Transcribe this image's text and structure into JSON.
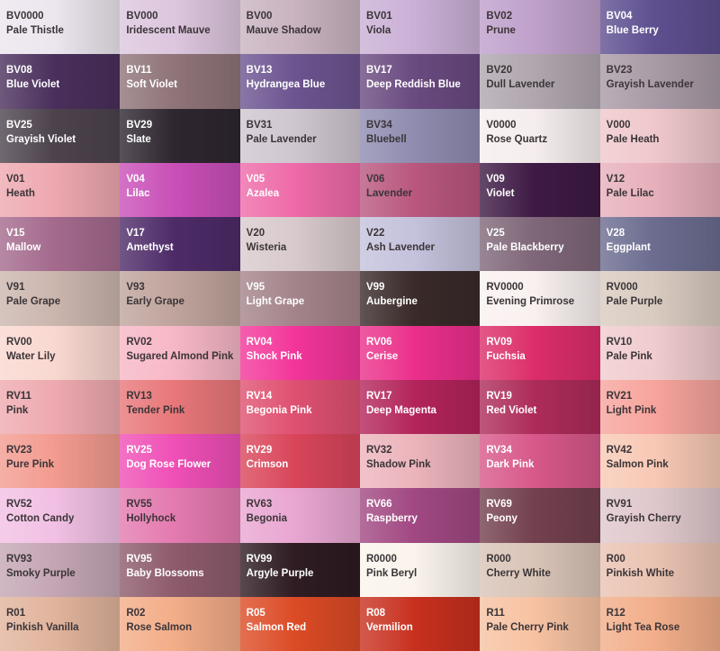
{
  "swatches": [
    {
      "code": "BV0000",
      "name": "Pale Thistle",
      "color": "#ece6ee",
      "text": "dark"
    },
    {
      "code": "BV000",
      "name": "Iridescent Mauve",
      "color": "#ddc6de",
      "text": "dark"
    },
    {
      "code": "BV00",
      "name": "Mauve Shadow",
      "color": "#c9b3c0",
      "text": "dark"
    },
    {
      "code": "BV01",
      "name": "Viola",
      "color": "#cab0d6",
      "text": "dark"
    },
    {
      "code": "BV02",
      "name": "Prune",
      "color": "#bfa0cb",
      "text": "dark"
    },
    {
      "code": "BV04",
      "name": "Blue Berry",
      "color": "#5e4f90",
      "text": "light"
    },
    {
      "code": "BV08",
      "name": "Blue Violet",
      "color": "#4a2f5c",
      "text": "light"
    },
    {
      "code": "BV11",
      "name": "Soft Violet",
      "color": "#8f7479",
      "text": "light"
    },
    {
      "code": "BV13",
      "name": "Hydrangea Blue",
      "color": "#6c5490",
      "text": "light"
    },
    {
      "code": "BV17",
      "name": "Deep Reddish Blue",
      "color": "#6a4a80",
      "text": "light"
    },
    {
      "code": "BV20",
      "name": "Dull Lavender",
      "color": "#b0a6ae",
      "text": "dark"
    },
    {
      "code": "BV23",
      "name": "Grayish Lavender",
      "color": "#a89aa6",
      "text": "dark"
    },
    {
      "code": "BV25",
      "name": "Grayish Violet",
      "color": "#4d434d",
      "text": "light"
    },
    {
      "code": "BV29",
      "name": "Slate",
      "color": "#2e2630",
      "text": "light"
    },
    {
      "code": "BV31",
      "name": "Pale Lavender",
      "color": "#cfc6d0",
      "text": "dark"
    },
    {
      "code": "BV34",
      "name": "Bluebell",
      "color": "#8f8cb0",
      "text": "dark"
    },
    {
      "code": "V0000",
      "name": "Rose Quartz",
      "color": "#f6eeee",
      "text": "dark"
    },
    {
      "code": "V000",
      "name": "Pale Heath",
      "color": "#efc8cc",
      "text": "dark"
    },
    {
      "code": "V01",
      "name": "Heath",
      "color": "#eea8b0",
      "text": "dark"
    },
    {
      "code": "V04",
      "name": "Lilac",
      "color": "#c94fb8",
      "text": "light"
    },
    {
      "code": "V05",
      "name": "Azalea",
      "color": "#ee6aa8",
      "text": "light"
    },
    {
      "code": "V06",
      "name": "Lavender",
      "color": "#b9577f",
      "text": "dark"
    },
    {
      "code": "V09",
      "name": "Violet",
      "color": "#3e1a44",
      "text": "light"
    },
    {
      "code": "V12",
      "name": "Pale Lilac",
      "color": "#e7b0bb",
      "text": "dark"
    },
    {
      "code": "V15",
      "name": "Mallow",
      "color": "#a46a8d",
      "text": "light"
    },
    {
      "code": "V17",
      "name": "Amethyst",
      "color": "#4e2b68",
      "text": "light"
    },
    {
      "code": "V20",
      "name": "Wisteria",
      "color": "#d8cacd",
      "text": "dark"
    },
    {
      "code": "V22",
      "name": "Ash Lavender",
      "color": "#c4c2dc",
      "text": "dark"
    },
    {
      "code": "V25",
      "name": "Pale Blackberry",
      "color": "#7f6779",
      "text": "light"
    },
    {
      "code": "V28",
      "name": "Eggplant",
      "color": "#6c6c90",
      "text": "light"
    },
    {
      "code": "V91",
      "name": "Pale Grape",
      "color": "#cbb6ae",
      "text": "dark"
    },
    {
      "code": "V93",
      "name": "Early Grape",
      "color": "#bfa49c",
      "text": "dark"
    },
    {
      "code": "V95",
      "name": "Light Grape",
      "color": "#a4848b",
      "text": "light"
    },
    {
      "code": "V99",
      "name": "Aubergine",
      "color": "#3a2a2a",
      "text": "light"
    },
    {
      "code": "RV0000",
      "name": "Evening Primrose",
      "color": "#f9f1f0",
      "text": "dark"
    },
    {
      "code": "RV000",
      "name": "Pale Purple",
      "color": "#d9cbc0",
      "text": "dark"
    },
    {
      "code": "RV00",
      "name": "Water Lily",
      "color": "#f9d8d0",
      "text": "dark"
    },
    {
      "code": "RV02",
      "name": "Sugared Almond Pink",
      "color": "#f7b7c6",
      "text": "dark"
    },
    {
      "code": "RV04",
      "name": "Shock Pink",
      "color": "#f3359a",
      "text": "light"
    },
    {
      "code": "RV06",
      "name": "Cerise",
      "color": "#eb2f8b",
      "text": "light"
    },
    {
      "code": "RV09",
      "name": "Fuchsia",
      "color": "#dc2d6a",
      "text": "light"
    },
    {
      "code": "RV10",
      "name": "Pale Pink",
      "color": "#f0ccce",
      "text": "dark"
    },
    {
      "code": "RV11",
      "name": "Pink",
      "color": "#eeaab0",
      "text": "dark"
    },
    {
      "code": "RV13",
      "name": "Tender Pink",
      "color": "#e8777a",
      "text": "dark"
    },
    {
      "code": "RV14",
      "name": "Begonia Pink",
      "color": "#df5071",
      "text": "light"
    },
    {
      "code": "RV17",
      "name": "Deep Magenta",
      "color": "#b3245c",
      "text": "light"
    },
    {
      "code": "RV19",
      "name": "Red Violet",
      "color": "#ad2b5a",
      "text": "light"
    },
    {
      "code": "RV21",
      "name": "Light Pink",
      "color": "#f7a49d",
      "text": "dark"
    },
    {
      "code": "RV23",
      "name": "Pure Pink",
      "color": "#f39b90",
      "text": "dark"
    },
    {
      "code": "RV25",
      "name": "Dog Rose Flower",
      "color": "#ef4fb6",
      "text": "light"
    },
    {
      "code": "RV29",
      "name": "Crimson",
      "color": "#d9455a",
      "text": "light"
    },
    {
      "code": "RV32",
      "name": "Shadow Pink",
      "color": "#ecb4bc",
      "text": "dark"
    },
    {
      "code": "RV34",
      "name": "Dark Pink",
      "color": "#d7588a",
      "text": "light"
    },
    {
      "code": "RV42",
      "name": "Salmon Pink",
      "color": "#f8c9b5",
      "text": "dark"
    },
    {
      "code": "RV52",
      "name": "Cotton Candy",
      "color": "#f2c0e4",
      "text": "dark"
    },
    {
      "code": "RV55",
      "name": "Hollyhock",
      "color": "#e47ab0",
      "text": "dark"
    },
    {
      "code": "RV63",
      "name": "Begonia",
      "color": "#e9a6d2",
      "text": "dark"
    },
    {
      "code": "RV66",
      "name": "Raspberry",
      "color": "#a14882",
      "text": "light"
    },
    {
      "code": "RV69",
      "name": "Peony",
      "color": "#73404f",
      "text": "light"
    },
    {
      "code": "RV91",
      "name": "Grayish Cherry",
      "color": "#dfc8cc",
      "text": "dark"
    },
    {
      "code": "RV93",
      "name": "Smoky Purple",
      "color": "#c4a6b4",
      "text": "dark"
    },
    {
      "code": "RV95",
      "name": "Baby Blossoms",
      "color": "#8d5b6c",
      "text": "light"
    },
    {
      "code": "RV99",
      "name": "Argyle Purple",
      "color": "#2e1c22",
      "text": "light"
    },
    {
      "code": "R0000",
      "name": "Pink Beryl",
      "color": "#faf4ec",
      "text": "dark"
    },
    {
      "code": "R000",
      "name": "Cherry White",
      "color": "#d9c4b7",
      "text": "dark"
    },
    {
      "code": "R00",
      "name": "Pinkish White",
      "color": "#eac3b2",
      "text": "dark"
    },
    {
      "code": "R01",
      "name": "Pinkish Vanilla",
      "color": "#e1b49c",
      "text": "dark"
    },
    {
      "code": "R02",
      "name": "Rose Salmon",
      "color": "#f3ad88",
      "text": "dark"
    },
    {
      "code": "R05",
      "name": "Salmon Red",
      "color": "#dc4b25",
      "text": "light"
    },
    {
      "code": "R08",
      "name": "Vermilion",
      "color": "#c8301e",
      "text": "light"
    },
    {
      "code": "R11",
      "name": "Pale Cherry Pink",
      "color": "#f7c2a2",
      "text": "dark"
    },
    {
      "code": "R12",
      "name": "Light Tea Rose",
      "color": "#f2ae8a",
      "text": "dark"
    }
  ]
}
